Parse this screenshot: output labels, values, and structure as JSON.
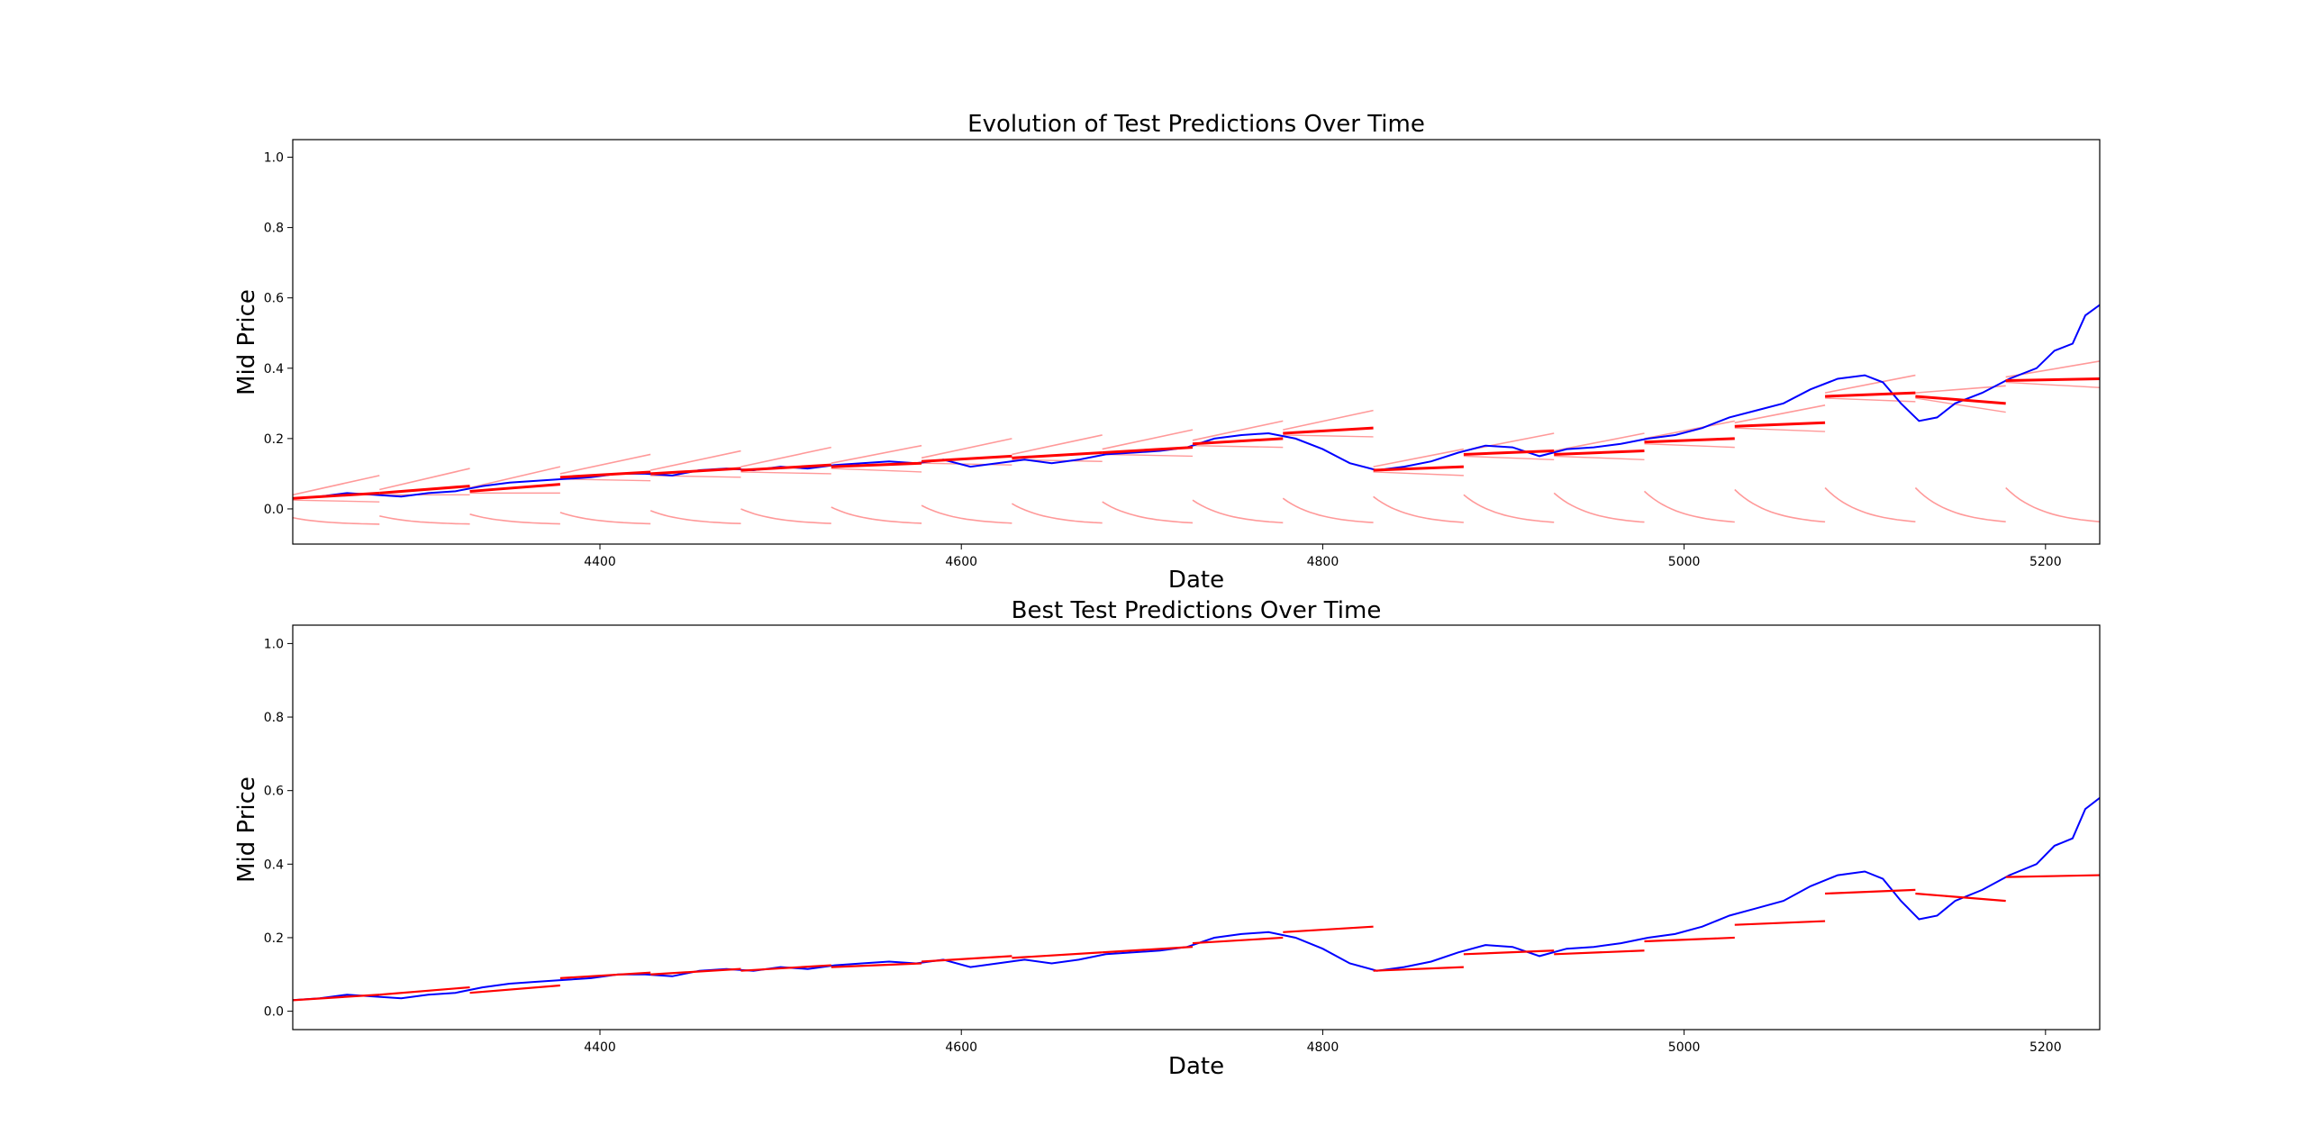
{
  "colors": {
    "actual": "#0000ff",
    "prediction": "#ff0000",
    "faded_prediction": "#ff9999",
    "axes": "#000000",
    "background": "#ffffff"
  },
  "chart_data": [
    {
      "type": "line",
      "title": "Evolution of Test Predictions Over Time",
      "xlabel": "Date",
      "ylabel": "Mid Price",
      "xlim": [
        4230,
        5230
      ],
      "ylim": [
        -0.1,
        1.05
      ],
      "xticks": [
        4400,
        4600,
        4800,
        5000,
        5200
      ],
      "yticks": [
        0.0,
        0.2,
        0.4,
        0.6,
        0.8,
        1.0
      ],
      "grid": false,
      "actual": {
        "x": [
          4230,
          4245,
          4260,
          4275,
          4290,
          4305,
          4320,
          4335,
          4350,
          4365,
          4380,
          4395,
          4410,
          4425,
          4440,
          4455,
          4470,
          4485,
          4500,
          4515,
          4530,
          4545,
          4560,
          4575,
          4590,
          4605,
          4620,
          4635,
          4650,
          4665,
          4680,
          4695,
          4710,
          4725,
          4740,
          4755,
          4770,
          4785,
          4800,
          4815,
          4830,
          4845,
          4860,
          4875,
          4890,
          4905,
          4920,
          4935,
          4950,
          4965,
          4980,
          4995,
          5010,
          5025,
          5040,
          5055,
          5070,
          5085,
          5100,
          5110,
          5120,
          5130,
          5140,
          5150,
          5165,
          5180,
          5195,
          5205,
          5215,
          5222,
          5230
        ],
        "y": [
          0.03,
          0.035,
          0.045,
          0.04,
          0.035,
          0.045,
          0.05,
          0.065,
          0.075,
          0.08,
          0.085,
          0.09,
          0.1,
          0.1,
          0.095,
          0.11,
          0.115,
          0.11,
          0.12,
          0.115,
          0.125,
          0.13,
          0.135,
          0.13,
          0.14,
          0.12,
          0.13,
          0.14,
          0.13,
          0.14,
          0.155,
          0.16,
          0.165,
          0.175,
          0.2,
          0.21,
          0.215,
          0.2,
          0.17,
          0.13,
          0.11,
          0.12,
          0.135,
          0.16,
          0.18,
          0.175,
          0.15,
          0.17,
          0.175,
          0.185,
          0.2,
          0.21,
          0.23,
          0.26,
          0.28,
          0.3,
          0.34,
          0.37,
          0.38,
          0.36,
          0.3,
          0.25,
          0.26,
          0.3,
          0.33,
          0.37,
          0.4,
          0.45,
          0.47,
          0.55,
          0.58
        ]
      },
      "prediction_segments": [
        {
          "x": [
            4230,
            4278
          ],
          "y": [
            0.03,
            0.045
          ]
        },
        {
          "x": [
            4278,
            4328
          ],
          "y": [
            0.045,
            0.065
          ]
        },
        {
          "x": [
            4328,
            4378
          ],
          "y": [
            0.05,
            0.07
          ]
        },
        {
          "x": [
            4378,
            4428
          ],
          "y": [
            0.09,
            0.105
          ]
        },
        {
          "x": [
            4428,
            4478
          ],
          "y": [
            0.1,
            0.115
          ]
        },
        {
          "x": [
            4478,
            4528
          ],
          "y": [
            0.11,
            0.125
          ]
        },
        {
          "x": [
            4528,
            4578
          ],
          "y": [
            0.12,
            0.13
          ]
        },
        {
          "x": [
            4578,
            4628
          ],
          "y": [
            0.135,
            0.15
          ]
        },
        {
          "x": [
            4628,
            4678
          ],
          "y": [
            0.145,
            0.16
          ]
        },
        {
          "x": [
            4678,
            4728
          ],
          "y": [
            0.16,
            0.175
          ]
        },
        {
          "x": [
            4728,
            4778
          ],
          "y": [
            0.185,
            0.2
          ]
        },
        {
          "x": [
            4778,
            4828
          ],
          "y": [
            0.215,
            0.23
          ]
        },
        {
          "x": [
            4828,
            4878
          ],
          "y": [
            0.11,
            0.12
          ]
        },
        {
          "x": [
            4878,
            4928
          ],
          "y": [
            0.155,
            0.165
          ]
        },
        {
          "x": [
            4928,
            4978
          ],
          "y": [
            0.155,
            0.165
          ]
        },
        {
          "x": [
            4978,
            5028
          ],
          "y": [
            0.19,
            0.2
          ]
        },
        {
          "x": [
            5028,
            5078
          ],
          "y": [
            0.235,
            0.245
          ]
        },
        {
          "x": [
            5078,
            5128
          ],
          "y": [
            0.32,
            0.33
          ]
        },
        {
          "x": [
            5128,
            5178
          ],
          "y": [
            0.32,
            0.3
          ]
        },
        {
          "x": [
            5178,
            5230
          ],
          "y": [
            0.365,
            0.37
          ]
        }
      ]
    },
    {
      "type": "line",
      "title": "Best Test Predictions Over Time",
      "xlabel": "Date",
      "ylabel": "Mid Price",
      "xlim": [
        4230,
        5230
      ],
      "ylim": [
        -0.05,
        1.05
      ],
      "xticks": [
        4400,
        4600,
        4800,
        5000,
        5200
      ],
      "yticks": [
        0.0,
        0.2,
        0.4,
        0.6,
        0.8,
        1.0
      ],
      "grid": false,
      "actual": {
        "x": [
          4230,
          4245,
          4260,
          4275,
          4290,
          4305,
          4320,
          4335,
          4350,
          4365,
          4380,
          4395,
          4410,
          4425,
          4440,
          4455,
          4470,
          4485,
          4500,
          4515,
          4530,
          4545,
          4560,
          4575,
          4590,
          4605,
          4620,
          4635,
          4650,
          4665,
          4680,
          4695,
          4710,
          4725,
          4740,
          4755,
          4770,
          4785,
          4800,
          4815,
          4830,
          4845,
          4860,
          4875,
          4890,
          4905,
          4920,
          4935,
          4950,
          4965,
          4980,
          4995,
          5010,
          5025,
          5040,
          5055,
          5070,
          5085,
          5100,
          5110,
          5120,
          5130,
          5140,
          5150,
          5165,
          5180,
          5195,
          5205,
          5215,
          5222,
          5230
        ],
        "y": [
          0.03,
          0.035,
          0.045,
          0.04,
          0.035,
          0.045,
          0.05,
          0.065,
          0.075,
          0.08,
          0.085,
          0.09,
          0.1,
          0.1,
          0.095,
          0.11,
          0.115,
          0.11,
          0.12,
          0.115,
          0.125,
          0.13,
          0.135,
          0.13,
          0.14,
          0.12,
          0.13,
          0.14,
          0.13,
          0.14,
          0.155,
          0.16,
          0.165,
          0.175,
          0.2,
          0.21,
          0.215,
          0.2,
          0.17,
          0.13,
          0.11,
          0.12,
          0.135,
          0.16,
          0.18,
          0.175,
          0.15,
          0.17,
          0.175,
          0.185,
          0.2,
          0.21,
          0.23,
          0.26,
          0.28,
          0.3,
          0.34,
          0.37,
          0.38,
          0.36,
          0.3,
          0.25,
          0.26,
          0.3,
          0.33,
          0.37,
          0.4,
          0.45,
          0.47,
          0.55,
          0.58
        ]
      },
      "prediction_segments": [
        {
          "x": [
            4230,
            4278
          ],
          "y": [
            0.03,
            0.045
          ]
        },
        {
          "x": [
            4278,
            4328
          ],
          "y": [
            0.045,
            0.065
          ]
        },
        {
          "x": [
            4328,
            4378
          ],
          "y": [
            0.05,
            0.07
          ]
        },
        {
          "x": [
            4378,
            4428
          ],
          "y": [
            0.09,
            0.105
          ]
        },
        {
          "x": [
            4428,
            4478
          ],
          "y": [
            0.1,
            0.115
          ]
        },
        {
          "x": [
            4478,
            4528
          ],
          "y": [
            0.11,
            0.125
          ]
        },
        {
          "x": [
            4528,
            4578
          ],
          "y": [
            0.12,
            0.13
          ]
        },
        {
          "x": [
            4578,
            4628
          ],
          "y": [
            0.135,
            0.15
          ]
        },
        {
          "x": [
            4628,
            4678
          ],
          "y": [
            0.145,
            0.16
          ]
        },
        {
          "x": [
            4678,
            4728
          ],
          "y": [
            0.16,
            0.175
          ]
        },
        {
          "x": [
            4728,
            4778
          ],
          "y": [
            0.185,
            0.2
          ]
        },
        {
          "x": [
            4778,
            4828
          ],
          "y": [
            0.215,
            0.23
          ]
        },
        {
          "x": [
            4828,
            4878
          ],
          "y": [
            0.11,
            0.12
          ]
        },
        {
          "x": [
            4878,
            4928
          ],
          "y": [
            0.155,
            0.165
          ]
        },
        {
          "x": [
            4928,
            4978
          ],
          "y": [
            0.155,
            0.165
          ]
        },
        {
          "x": [
            4978,
            5028
          ],
          "y": [
            0.19,
            0.2
          ]
        },
        {
          "x": [
            5028,
            5078
          ],
          "y": [
            0.235,
            0.245
          ]
        },
        {
          "x": [
            5078,
            5128
          ],
          "y": [
            0.32,
            0.33
          ]
        },
        {
          "x": [
            5128,
            5178
          ],
          "y": [
            0.32,
            0.3
          ]
        },
        {
          "x": [
            5178,
            5230
          ],
          "y": [
            0.365,
            0.37
          ]
        }
      ]
    }
  ]
}
